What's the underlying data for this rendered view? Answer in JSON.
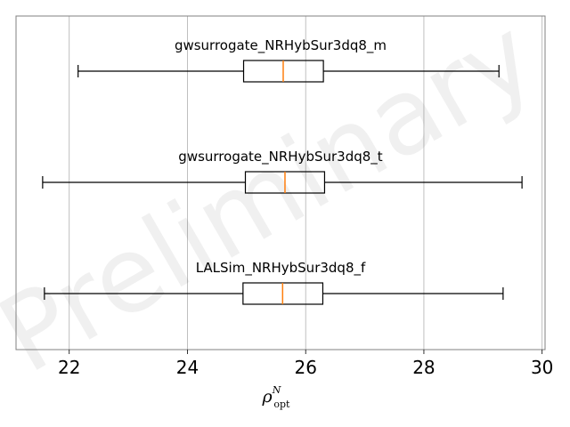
{
  "chart_data": {
    "type": "boxplot",
    "orientation": "horizontal",
    "xlabel": {
      "base": "ρ",
      "superscript": "N",
      "subscript": "opt"
    },
    "xlim": [
      21.1,
      30.05
    ],
    "xticks": [
      22,
      24,
      26,
      28,
      30
    ],
    "grid": "vertical",
    "watermark": "Preliminary",
    "series": [
      {
        "name": "gwsurrogate_NRHybSur3dq8_m",
        "whisker_low": 22.15,
        "q1": 24.95,
        "median": 25.62,
        "q3": 26.3,
        "whisker_high": 29.27
      },
      {
        "name": "gwsurrogate_NRHybSur3dq8_t",
        "whisker_low": 21.55,
        "q1": 24.98,
        "median": 25.65,
        "q3": 26.32,
        "whisker_high": 29.66
      },
      {
        "name": "LALSim_NRHybSur3dq8_f",
        "whisker_low": 21.58,
        "q1": 24.94,
        "median": 25.61,
        "q3": 26.29,
        "whisker_high": 29.34
      }
    ],
    "colors": {
      "box": "#000000",
      "median": "#ff7f0e",
      "grid": "#b0b0b0",
      "frame": "#808080"
    }
  }
}
